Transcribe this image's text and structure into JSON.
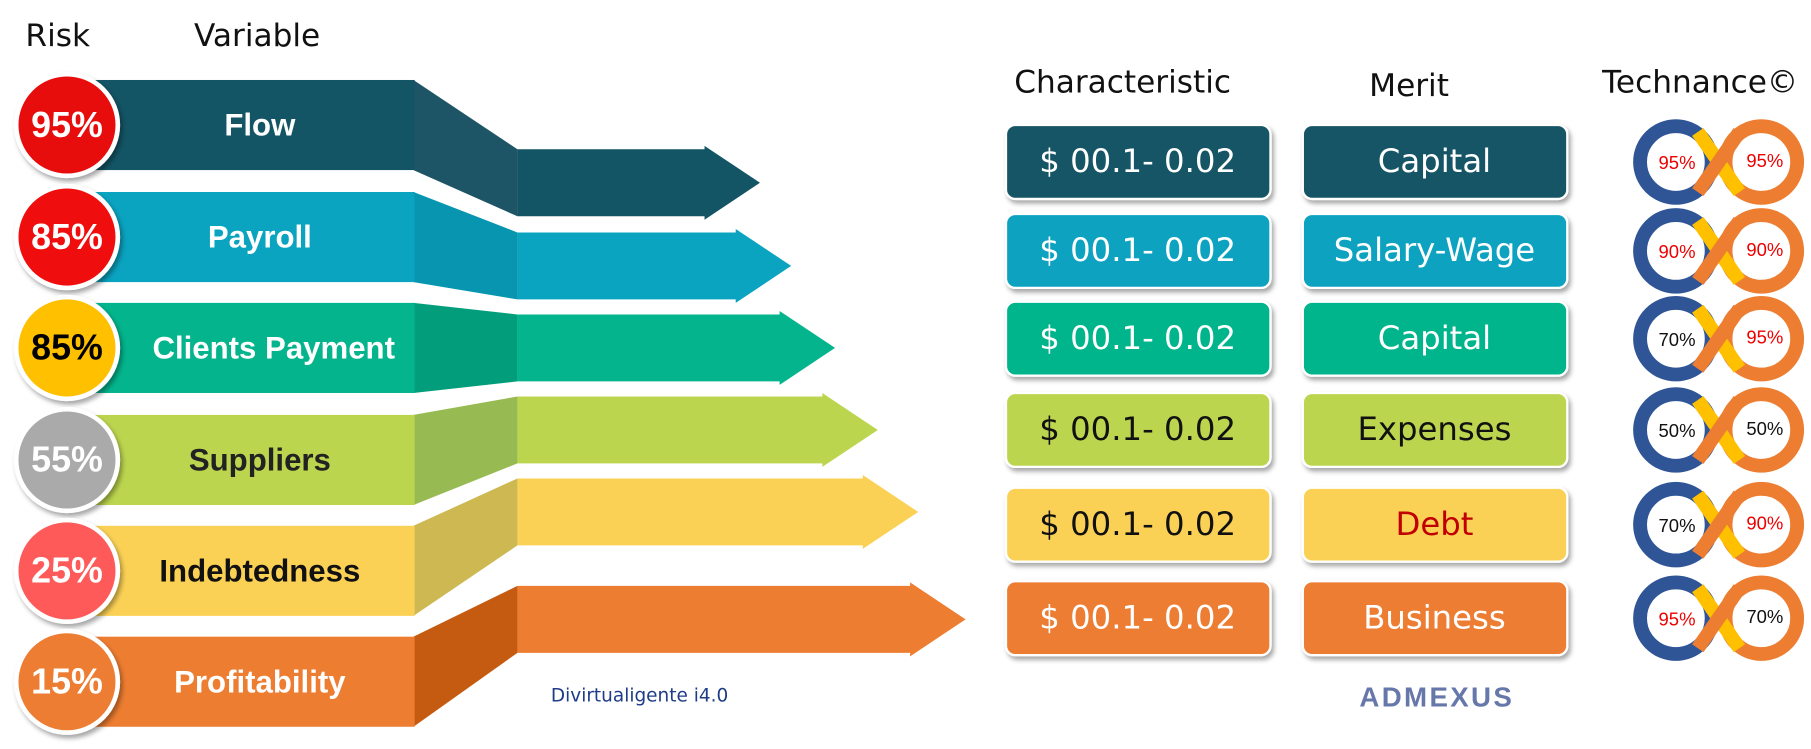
{
  "headers": {
    "risk": "Risk",
    "variable": "Variable",
    "characteristic": "Characteristic",
    "merit": "Merit",
    "technance": "Technance©"
  },
  "rows": [
    {
      "risk": "95%",
      "variable": "Flow",
      "characteristic": "$ 00.1- 0.02",
      "merit": "Capital",
      "technance_left": "95%",
      "technance_right": "95%"
    },
    {
      "risk": "85%",
      "variable": "Payroll",
      "characteristic": "$ 00.1- 0.02",
      "merit": "Salary-Wage",
      "technance_left": "90%",
      "technance_right": "90%"
    },
    {
      "risk": "85%",
      "variable": "Clients Payment",
      "characteristic": "$ 00.1- 0.02",
      "merit": "Capital",
      "technance_left": "70%",
      "technance_right": "95%"
    },
    {
      "risk": "55%",
      "variable": "Suppliers",
      "characteristic": "$ 00.1- 0.02",
      "merit": "Expenses",
      "technance_left": "50%",
      "technance_right": "50%"
    },
    {
      "risk": "25%",
      "variable": "Indebtedness",
      "characteristic": "$ 00.1- 0.02",
      "merit": "Debt",
      "technance_left": "70%",
      "technance_right": "90%"
    },
    {
      "risk": "15%",
      "variable": "Profitability",
      "characteristic": "$ 00.1- 0.02",
      "merit": "Business",
      "technance_left": "95%",
      "technance_right": "70%"
    }
  ],
  "branding": {
    "left": "Divirtualigente i4.0",
    "right": "ADMEXUS"
  }
}
